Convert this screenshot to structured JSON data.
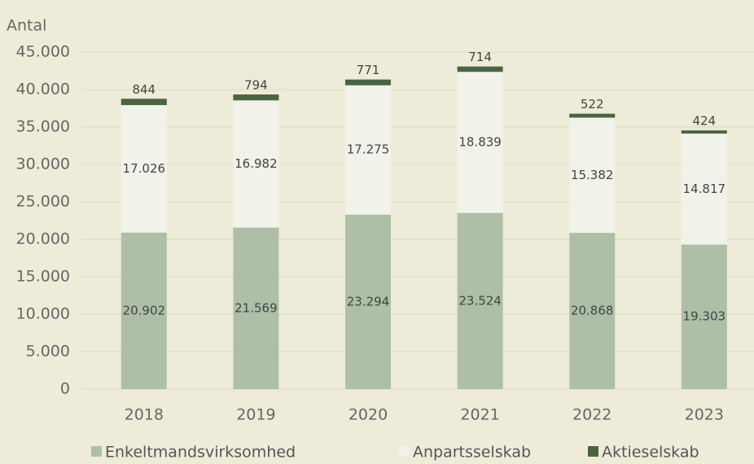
{
  "chart_data": {
    "type": "stacked_bar",
    "y_axis_label": "Antal",
    "categories": [
      "2018",
      "2019",
      "2020",
      "2021",
      "2022",
      "2023"
    ],
    "series": [
      {
        "name": "Enkeltmandsvirksomhed",
        "color": "#adbfa6",
        "values": [
          20902,
          21569,
          23294,
          23524,
          20868,
          19303
        ],
        "value_labels": [
          "20.902",
          "21.569",
          "23.294",
          "23.524",
          "20.868",
          "19.303"
        ]
      },
      {
        "name": "Anpartsselskab",
        "color": "#f1f2ea",
        "values": [
          17026,
          16982,
          17275,
          18839,
          15382,
          14817
        ],
        "value_labels": [
          "17.026",
          "16.982",
          "17.275",
          "18.839",
          "15.382",
          "14.817"
        ]
      },
      {
        "name": "Aktieselskab",
        "color": "#4a6441",
        "values": [
          844,
          794,
          771,
          714,
          522,
          424
        ]
      }
    ],
    "ylim": [
      0,
      45000
    ],
    "yticks": [
      0,
      {
        "value": 5000,
        "label": "5.000"
      },
      {
        "value": 10000,
        "label": "10.000"
      },
      {
        "value": 15000,
        "label": "15.000"
      },
      {
        "value": 20000,
        "label": "20.000"
      },
      {
        "value": 25000,
        "label": "25.000"
      },
      {
        "value": 30000,
        "label": "30.000"
      },
      {
        "value": 35000,
        "label": "35.000"
      },
      {
        "value": 40000,
        "label": "40.000"
      },
      {
        "value": 45000,
        "label": "45.000"
      }
    ],
    "grid": true,
    "legend": "bottom"
  }
}
